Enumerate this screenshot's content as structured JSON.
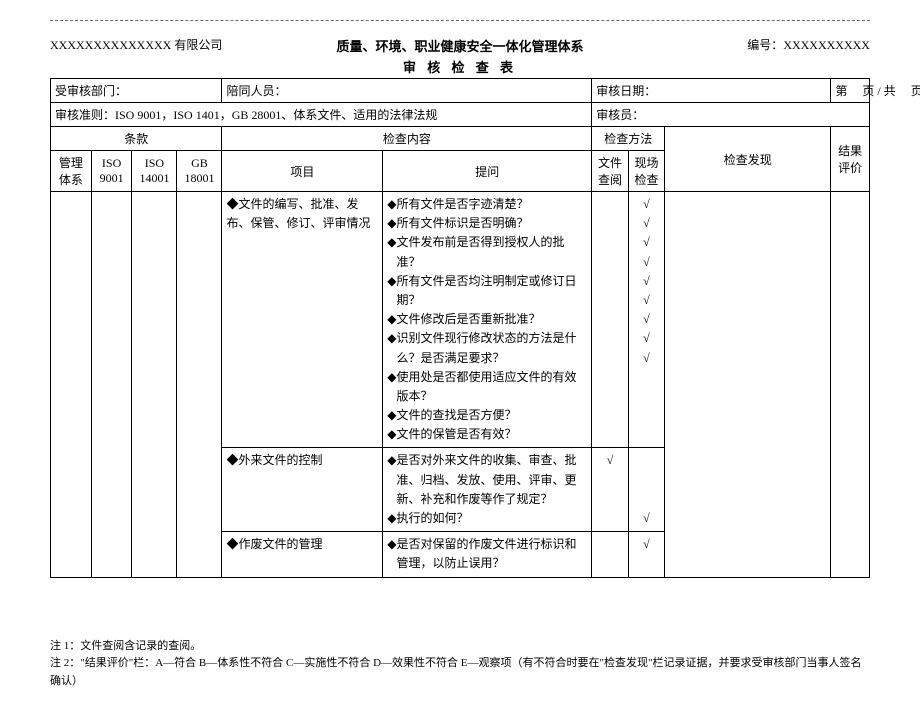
{
  "header": {
    "company": "XXXXXXXXXXXXXX 有限公司",
    "title1": "质量、环境、职业健康安全一体化管理体系",
    "title2": "审 核 检 查 表",
    "docno_label": "编号：",
    "docno_value": "XXXXXXXXXX"
  },
  "info": {
    "dept_label": "受审核部门：",
    "dept_value": "",
    "accompany_label": "陪同人员：",
    "accompany_value": "",
    "date_label": "审核日期：",
    "date_value": "",
    "page_prefix": "第",
    "page_mid": "页 / 共",
    "page_suffix": "页",
    "criteria_label": "审核准则：",
    "criteria_value": "ISO 9001，ISO 1401，GB 28001、体系文件、适用的法律法规",
    "auditor_label": "审核员：",
    "auditor_value": ""
  },
  "columns": {
    "clause": "条款",
    "content": "检查内容",
    "method": "检查方法",
    "sys": "管理体系",
    "iso9001": "ISO 9001",
    "iso14001": "ISO 14001",
    "gb18001": "GB 18001",
    "item": "项目",
    "question": "提问",
    "docreview": "文件查阅",
    "sitecheck": "现场检查",
    "finding": "检查发现",
    "result": "结果评价"
  },
  "rows": [
    {
      "item": "◆文件的编写、批准、发布、保管、修订、评审情况",
      "questions": [
        "所有文件是否字迹清楚？",
        "所有文件标识是否明确？",
        "文件发布前是否得到授权人的批准？",
        "所有文件是否均注明制定或修订日期？",
        "文件修改后是否重新批准？",
        "识别文件现行修改状态的方法是什么？是否满足要求？",
        "使用处是否都使用适应文件的有效版本？",
        "文件的查找是否方便？",
        "文件的保管是否有效？"
      ],
      "doc_checks": [
        "",
        "",
        "",
        "",
        "",
        "",
        "",
        "",
        ""
      ],
      "site_checks": [
        "√",
        "√",
        "√",
        "√",
        "√",
        "√",
        "√",
        "√",
        "√"
      ],
      "site_check_extra_pad": false
    },
    {
      "item": "◆外来文件的控制",
      "questions": [
        "是否对外来文件的收集、审查、批准、归档、发放、使用、评审、更新、补充和作废等作了规定？",
        "执行的如何？"
      ],
      "doc_checks": [
        "√",
        ""
      ],
      "site_checks": [
        "",
        "",
        "",
        "√"
      ],
      "site_check_extra_pad": true
    },
    {
      "item": "◆作废文件的管理",
      "questions": [
        "是否对保留的作废文件进行标识和管理，以防止误用？"
      ],
      "doc_checks": [
        ""
      ],
      "site_checks": [
        "√"
      ],
      "site_check_extra_pad": false
    }
  ],
  "notes": {
    "n1": "注 1：文件查阅含记录的查阅。",
    "n2": "注 2：\"结果评价\"栏：A—符合  B—体系性不符合  C—实施性不符合  D—效果性不符合  E—观察项（有不符合时要在\"检查发现\"栏记录证据，并要求受审核部门当事人签名确认）"
  },
  "style": {
    "bullet": "◆",
    "check_mark": "√"
  }
}
